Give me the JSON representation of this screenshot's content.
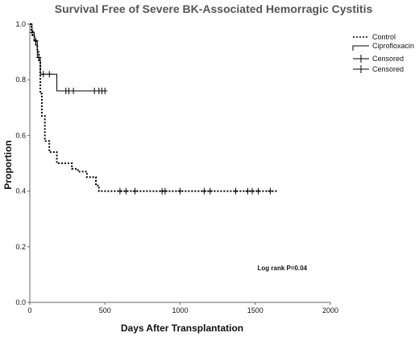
{
  "chart_data": {
    "type": "line",
    "title": "Survival Free of Severe BK-Associated Hemorragic Cystitis",
    "xlabel": "Days After Transplantation",
    "ylabel": "Proportion",
    "xlim": [
      0,
      2000
    ],
    "ylim": [
      0.0,
      1.0
    ],
    "xticks": [
      0,
      500,
      1000,
      1500,
      2000
    ],
    "yticks": [
      0.0,
      0.2,
      0.4,
      0.6,
      0.8,
      1.0
    ],
    "xtick_labels": [
      "0",
      "500",
      "1000",
      "1500",
      "2000"
    ],
    "ytick_labels": [
      "0.0",
      "0.2",
      "0.4",
      "0.6",
      "0.8",
      "1.0"
    ],
    "grid": false,
    "legend_position": "top-right",
    "legend": [
      "Control",
      "Ciprofloxacin",
      "Censored",
      "Censored"
    ],
    "series": [
      {
        "name": "Control",
        "style": "dotted-step",
        "x": [
          0,
          10,
          20,
          30,
          40,
          50,
          60,
          70,
          80,
          100,
          130,
          180,
          250,
          280,
          320,
          380,
          440,
          460,
          600,
          800,
          1000,
          1200,
          1400,
          1650
        ],
        "y": [
          1.0,
          0.98,
          0.96,
          0.94,
          0.92,
          0.9,
          0.87,
          0.75,
          0.67,
          0.58,
          0.54,
          0.5,
          0.5,
          0.48,
          0.47,
          0.45,
          0.42,
          0.4,
          0.4,
          0.4,
          0.4,
          0.4,
          0.4,
          0.4
        ],
        "censored_x": [
          600,
          640,
          700,
          880,
          900,
          1000,
          1160,
          1200,
          1370,
          1450,
          1480,
          1520,
          1600
        ],
        "censored_y": [
          0.4,
          0.4,
          0.4,
          0.4,
          0.4,
          0.4,
          0.4,
          0.4,
          0.4,
          0.4,
          0.4,
          0.4,
          0.4
        ]
      },
      {
        "name": "Ciprofloxacin",
        "style": "solid-step",
        "x": [
          0,
          15,
          30,
          50,
          70,
          180,
          500
        ],
        "y": [
          1.0,
          0.97,
          0.94,
          0.88,
          0.82,
          0.76,
          0.76
        ],
        "censored_x": [
          15,
          40,
          60,
          90,
          130,
          240,
          260,
          290,
          430,
          460,
          480,
          500
        ],
        "censored_y": [
          0.97,
          0.94,
          0.88,
          0.82,
          0.82,
          0.76,
          0.76,
          0.76,
          0.76,
          0.76,
          0.76,
          0.76
        ]
      }
    ],
    "annotations": [
      {
        "text": "Log rank P=0.04",
        "x": 1680,
        "y": 0.115
      }
    ]
  },
  "colors": {
    "line": "#000000",
    "title": "#555555",
    "axis": "#666666"
  }
}
